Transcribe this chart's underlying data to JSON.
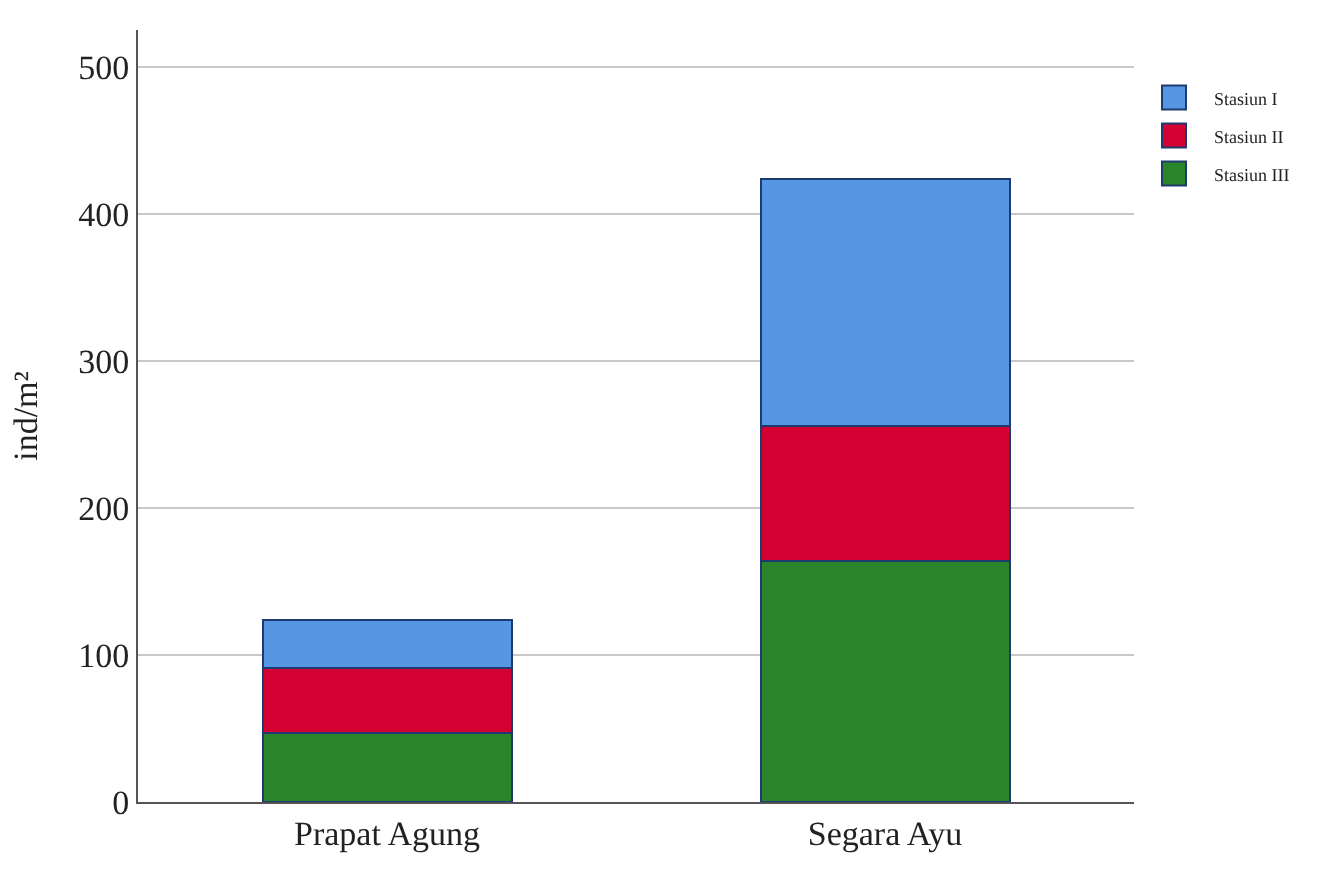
{
  "chart_data": {
    "type": "bar",
    "stacked": true,
    "ylabel": "ind/m²",
    "categories": [
      "Prapat Agung",
      "Segara Ayu"
    ],
    "series": [
      {
        "name": "Stasiun III",
        "color": "#2a852a",
        "values": [
          47,
          164
        ]
      },
      {
        "name": "Stasiun II",
        "color": "#d50032",
        "values": [
          44,
          92
        ]
      },
      {
        "name": "Stasiun I",
        "color": "#5597e3",
        "values": [
          33,
          168
        ]
      }
    ],
    "ylim": [
      0,
      525
    ],
    "yticks": [
      0,
      100,
      200,
      300,
      400,
      500
    ],
    "grid": "y",
    "legend": "top right"
  }
}
